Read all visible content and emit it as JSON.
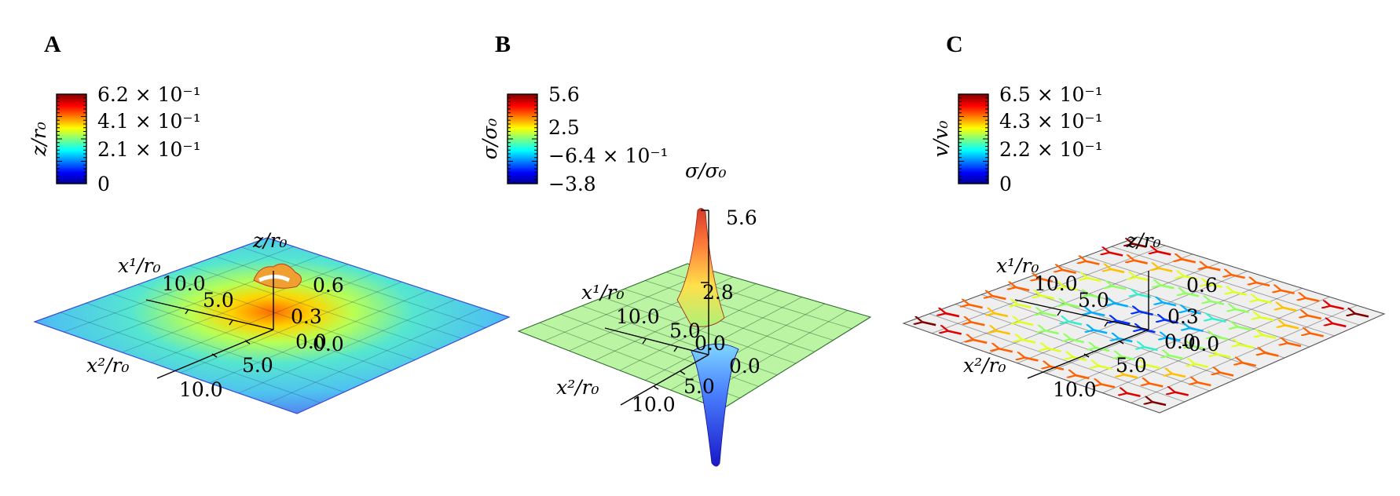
{
  "colors": {
    "jet_low": "#00008f",
    "jet_mid": "#7fff7f",
    "jet_high": "#800000",
    "grid": "#333333"
  },
  "chart_data": [
    {
      "panel": "A",
      "type": "surface",
      "colorbar": {
        "label": "z/r₀",
        "ticks": [
          "6.2 × 10⁻¹",
          "4.1 × 10⁻¹",
          "2.1 × 10⁻¹",
          "0"
        ],
        "range": [
          0,
          0.62
        ]
      },
      "axes": {
        "x1": {
          "label": "x¹/r₀",
          "ticks": [
            "10.0",
            "5.0"
          ]
        },
        "x2": {
          "label": "x²/r₀",
          "ticks": [
            "5.0",
            "10.0"
          ]
        },
        "z": {
          "label": "z/r₀",
          "ticks": [
            "0.6",
            "0.3",
            "0.0"
          ]
        },
        "origin_ticks": [
          "0.0",
          "0.0"
        ]
      }
    },
    {
      "panel": "B",
      "type": "surface",
      "colorbar": {
        "label": "σ/σ₀",
        "ticks": [
          "5.6",
          "2.5",
          "−6.4 × 10⁻¹",
          "−3.8"
        ],
        "range": [
          -3.8,
          5.6
        ]
      },
      "axes": {
        "x1": {
          "label": "x¹/r₀",
          "ticks": [
            "10.0",
            "5.0"
          ]
        },
        "x2": {
          "label": "x²/r₀",
          "ticks": [
            "5.0",
            "10.0"
          ]
        },
        "z": {
          "label": "σ/σ₀",
          "ticks": [
            "5.6",
            "2.8",
            "0.0"
          ]
        },
        "origin_ticks": [
          "0.0"
        ]
      }
    },
    {
      "panel": "C",
      "type": "surface",
      "colorbar": {
        "label": "v/v₀",
        "ticks": [
          "6.5 × 10⁻¹",
          "4.3 × 10⁻¹",
          "2.2 × 10⁻¹",
          "0"
        ],
        "range": [
          0,
          0.65
        ]
      },
      "axes": {
        "x1": {
          "label": "x¹/r₀",
          "ticks": [
            "10.0",
            "5.0"
          ]
        },
        "x2": {
          "label": "x²/r₀",
          "ticks": [
            "5.0",
            "10.0"
          ]
        },
        "z": {
          "label": "z/r₀",
          "ticks": [
            "0.6",
            "0.3",
            "-0.0"
          ]
        },
        "origin_ticks": [
          "0.0",
          "0.0"
        ]
      }
    }
  ]
}
